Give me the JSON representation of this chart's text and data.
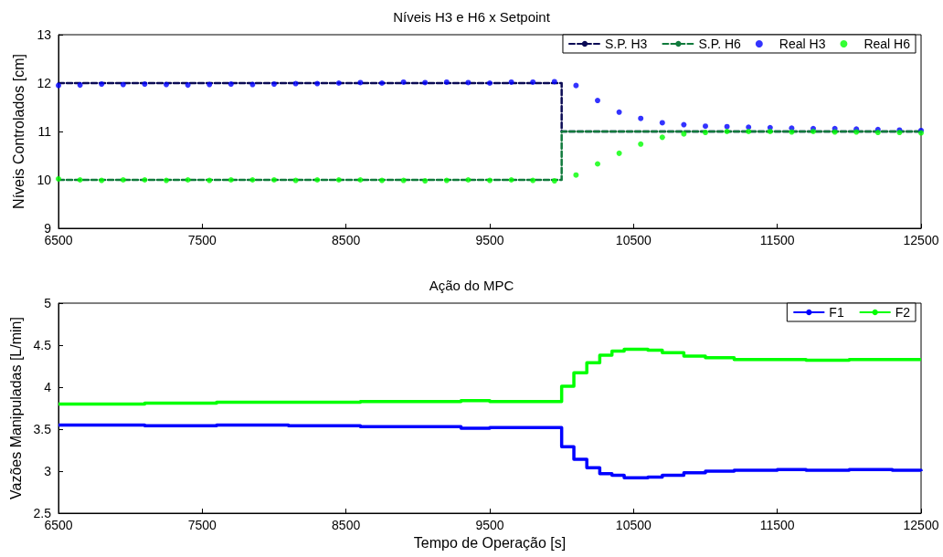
{
  "chart_data": [
    {
      "type": "scatter",
      "title": "Níveis H3 e H6 x Setpoint",
      "ylabel": "Níveis Controlados [cm]",
      "xlim": [
        6500,
        12500
      ],
      "xticks": [
        6500,
        7500,
        8500,
        9500,
        10500,
        11500,
        12500
      ],
      "ylim": [
        9,
        13
      ],
      "yticks": [
        9,
        10,
        11,
        12,
        13
      ],
      "grid": false,
      "legend": "top right",
      "series": [
        {
          "name": "S.P. H3",
          "type": "line",
          "color": "#0b0b55",
          "line_style": "dashed",
          "marker": "none",
          "x": [
            6500,
            10000,
            10000,
            12500
          ],
          "values": [
            12,
            12,
            11,
            11
          ]
        },
        {
          "name": "S.P. H6",
          "type": "line",
          "color": "#107a3c",
          "line_style": "dashed",
          "marker": "none",
          "x": [
            6500,
            10000,
            10000,
            12500
          ],
          "values": [
            10,
            10,
            11,
            11
          ]
        },
        {
          "name": "Real H3",
          "type": "scatter",
          "color": "#0000ff",
          "marker": "circle",
          "x": [
            6500,
            6650,
            6800,
            6950,
            7100,
            7250,
            7400,
            7550,
            7700,
            7850,
            8000,
            8150,
            8300,
            8450,
            8600,
            8750,
            8900,
            9050,
            9200,
            9350,
            9500,
            9650,
            9800,
            9950,
            10100,
            10250,
            10400,
            10550,
            10700,
            10850,
            11000,
            11150,
            11300,
            11450,
            11600,
            11750,
            11900,
            12050,
            12200,
            12350,
            12500
          ],
          "values": [
            11.95,
            11.96,
            11.98,
            11.97,
            11.98,
            11.97,
            11.96,
            11.97,
            11.98,
            11.97,
            11.98,
            11.99,
            11.99,
            12.0,
            12.01,
            12.0,
            12.02,
            12.01,
            12.02,
            12.01,
            12.0,
            12.02,
            12.02,
            12.03,
            11.95,
            11.64,
            11.4,
            11.27,
            11.18,
            11.14,
            11.11,
            11.1,
            11.09,
            11.08,
            11.07,
            11.06,
            11.06,
            11.05,
            11.04,
            11.03,
            11.02
          ]
        },
        {
          "name": "Real H6",
          "type": "scatter",
          "color": "#00ff00",
          "marker": "circle",
          "x": [
            6500,
            6650,
            6800,
            6950,
            7100,
            7250,
            7400,
            7550,
            7700,
            7850,
            8000,
            8150,
            8300,
            8450,
            8600,
            8750,
            8900,
            9050,
            9200,
            9350,
            9500,
            9650,
            9800,
            9950,
            10100,
            10250,
            10400,
            10550,
            10700,
            10850,
            11000,
            11150,
            11300,
            11450,
            11600,
            11750,
            11900,
            12050,
            12200,
            12350,
            12500
          ],
          "values": [
            10.02,
            10.0,
            9.99,
            10.0,
            10.0,
            9.99,
            10.0,
            9.99,
            10.0,
            10.0,
            10.0,
            9.99,
            10.0,
            10.0,
            10.0,
            9.99,
            9.99,
            9.98,
            9.99,
            10.0,
            9.99,
            10.0,
            9.99,
            9.98,
            10.1,
            10.33,
            10.55,
            10.74,
            10.88,
            10.95,
            10.98,
            11.0,
            11.0,
            11.0,
            10.99,
            11.0,
            10.99,
            10.99,
            10.98,
            10.98,
            10.97
          ]
        }
      ]
    },
    {
      "type": "step",
      "title": "Ação do MPC",
      "xlabel": "Tempo de Operação [s]",
      "ylabel": "Vazões Manipuladas [L/min]",
      "xlim": [
        6500,
        12500
      ],
      "xticks": [
        6500,
        7500,
        8500,
        9500,
        10500,
        11500,
        12500
      ],
      "ylim": [
        2.5,
        5
      ],
      "yticks": [
        2.5,
        3,
        3.5,
        4,
        4.5,
        5
      ],
      "grid": false,
      "legend": "top right",
      "line_style": "solid",
      "marker": "none",
      "x": [
        6500,
        7100,
        7600,
        8100,
        8600,
        9300,
        9500,
        10000,
        10085,
        10175,
        10265,
        10350,
        10435,
        10600,
        10700,
        10850,
        11000,
        11200,
        11500,
        11700,
        12000,
        12300,
        12500
      ],
      "series": [
        {
          "name": "F1",
          "color": "#0000ff",
          "values": [
            3.55,
            3.54,
            3.55,
            3.54,
            3.53,
            3.51,
            3.52,
            3.29,
            3.14,
            3.04,
            2.97,
            2.95,
            2.92,
            2.93,
            2.95,
            2.98,
            3.0,
            3.01,
            3.02,
            3.01,
            3.02,
            3.01,
            3.0
          ]
        },
        {
          "name": "F2",
          "color": "#00ff00",
          "values": [
            3.8,
            3.81,
            3.82,
            3.82,
            3.83,
            3.84,
            3.83,
            4.01,
            4.17,
            4.29,
            4.38,
            4.43,
            4.45,
            4.44,
            4.41,
            4.37,
            4.35,
            4.33,
            4.33,
            4.32,
            4.33,
            4.33,
            4.33
          ]
        }
      ]
    }
  ]
}
